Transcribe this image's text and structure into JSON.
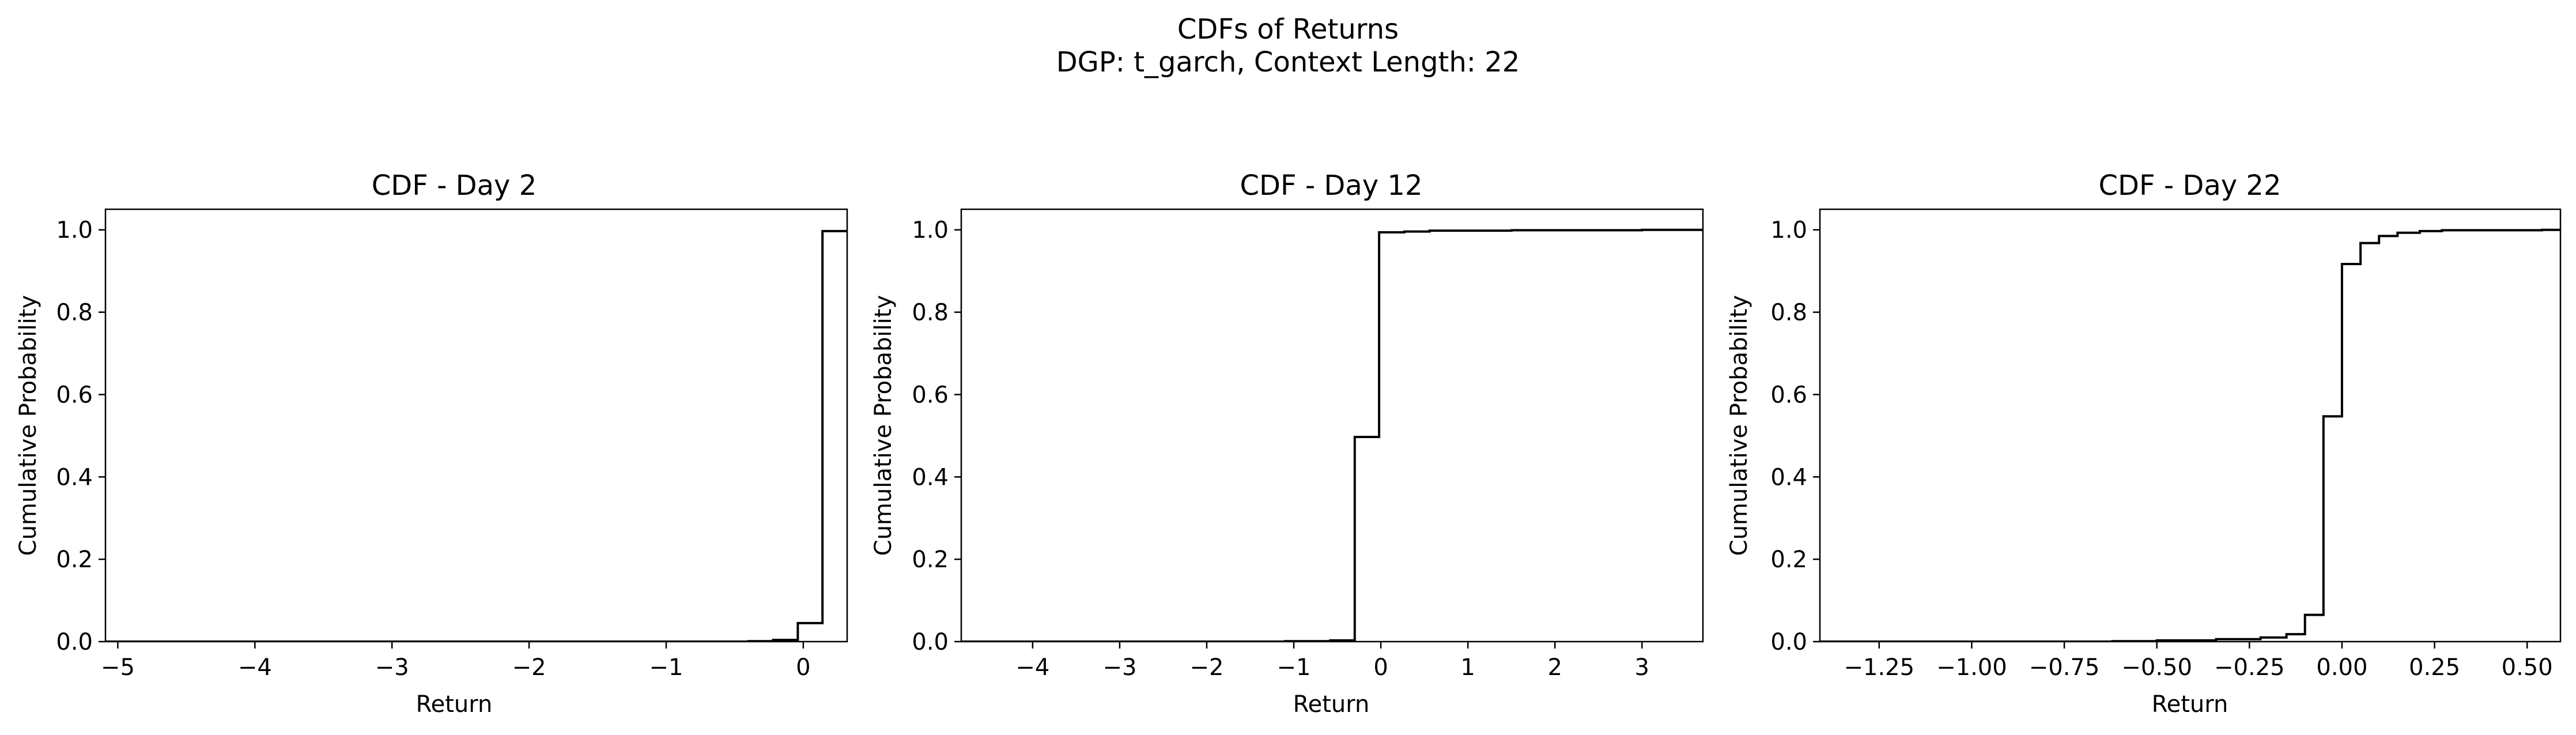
{
  "figure": {
    "title_line1": "CDFs of Returns",
    "title_line2": "DGP: t_garch, Context Length: 22"
  },
  "chart_data": [
    {
      "type": "line",
      "step": "post",
      "title": "CDF - Day 2",
      "xlabel": "Return",
      "ylabel": "Cumulative Probability",
      "xlim": [
        -5.09,
        0.32
      ],
      "ylim": [
        0,
        1.05
      ],
      "xticks": [
        -5,
        -4,
        -3,
        -2,
        -1,
        0
      ],
      "xtick_labels": [
        "−5",
        "−4",
        "−3",
        "−2",
        "−1",
        "0"
      ],
      "yticks": [
        0,
        0.2,
        0.4,
        0.6,
        0.8,
        1.0
      ],
      "ytick_labels": [
        "0.0",
        "0.2",
        "0.4",
        "0.6",
        "0.8",
        "1.0"
      ],
      "grid": false,
      "series": [
        {
          "color": "#000000",
          "x": [
            -5.09,
            -4.0,
            -0.4,
            -0.22,
            -0.04,
            0.14,
            0.32
          ],
          "y": [
            0.0,
            0.0,
            0.001,
            0.004,
            0.045,
            0.997,
            1.0
          ]
        }
      ]
    },
    {
      "type": "line",
      "step": "post",
      "title": "CDF - Day 12",
      "xlabel": "Return",
      "ylabel": "Cumulative Probability",
      "xlim": [
        -4.82,
        3.7
      ],
      "ylim": [
        0,
        1.05
      ],
      "xticks": [
        -4,
        -3,
        -2,
        -1,
        0,
        1,
        2,
        3
      ],
      "xtick_labels": [
        "−4",
        "−3",
        "−2",
        "−1",
        "0",
        "1",
        "2",
        "3"
      ],
      "yticks": [
        0,
        0.2,
        0.4,
        0.6,
        0.8,
        1.0
      ],
      "ytick_labels": [
        "0.0",
        "0.2",
        "0.4",
        "0.6",
        "0.8",
        "1.0"
      ],
      "grid": false,
      "series": [
        {
          "color": "#000000",
          "x": [
            -4.82,
            -2.0,
            -1.1,
            -0.58,
            -0.3,
            -0.02,
            0.27,
            0.56,
            1.5,
            3.0,
            3.7
          ],
          "y": [
            0.0,
            0.0,
            0.001,
            0.003,
            0.497,
            0.994,
            0.996,
            0.998,
            0.999,
            1.0,
            1.0
          ]
        }
      ]
    },
    {
      "type": "line",
      "step": "post",
      "title": "CDF - Day 22",
      "xlabel": "Return",
      "ylabel": "Cumulative Probability",
      "xlim": [
        -1.41,
        0.59
      ],
      "ylim": [
        0,
        1.05
      ],
      "xticks": [
        -1.25,
        -1.0,
        -0.75,
        -0.5,
        -0.25,
        0.0,
        0.25,
        0.5
      ],
      "xtick_labels": [
        "−1.25",
        "−1.00",
        "−0.75",
        "−0.50",
        "−0.25",
        "0.00",
        "0.25",
        "0.50"
      ],
      "yticks": [
        0,
        0.2,
        0.4,
        0.6,
        0.8,
        1.0
      ],
      "ytick_labels": [
        "0.0",
        "0.2",
        "0.4",
        "0.6",
        "0.8",
        "1.0"
      ],
      "grid": false,
      "series": [
        {
          "color": "#000000",
          "x": [
            -1.41,
            -0.62,
            -0.5,
            -0.34,
            -0.22,
            -0.15,
            -0.1,
            -0.05,
            0.0,
            0.05,
            0.1,
            0.15,
            0.21,
            0.27,
            0.54,
            0.59
          ],
          "y": [
            0.0,
            0.001,
            0.003,
            0.006,
            0.01,
            0.018,
            0.065,
            0.547,
            0.917,
            0.968,
            0.985,
            0.993,
            0.997,
            0.999,
            1.0,
            1.0
          ]
        }
      ]
    }
  ]
}
